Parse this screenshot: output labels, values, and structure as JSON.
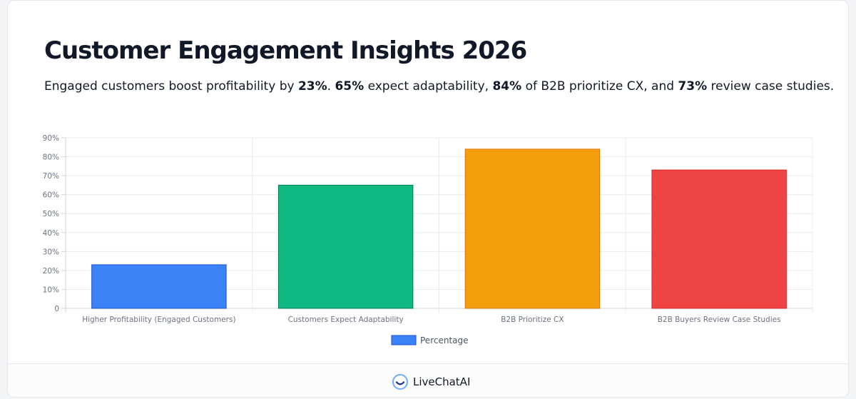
{
  "page": {
    "title": "Customer Engagement Insights 2026",
    "subtitle_parts": [
      {
        "text": "Engaged customers boost profitability by ",
        "bold": false
      },
      {
        "text": "23%",
        "bold": true
      },
      {
        "text": ". ",
        "bold": false
      },
      {
        "text": "65%",
        "bold": true
      },
      {
        "text": " expect adaptability, ",
        "bold": false
      },
      {
        "text": "84%",
        "bold": true
      },
      {
        "text": " of B2B prioritize CX, and ",
        "bold": false
      },
      {
        "text": "73%",
        "bold": true
      },
      {
        "text": " review case studies.",
        "bold": false
      }
    ]
  },
  "chart_data": {
    "type": "bar",
    "categories": [
      "Higher Profitability (Engaged Customers)",
      "Customers Expect Adaptability",
      "B2B Prioritize CX",
      "B2B Buyers Review Case Studies"
    ],
    "series": [
      {
        "name": "Percentage",
        "values": [
          23,
          65,
          84,
          73
        ],
        "colors": [
          "#3b82f6",
          "#10b981",
          "#f59e0b",
          "#ef4444"
        ],
        "border_colors": [
          "#1d4ed8",
          "#047857",
          "#d97706",
          "#dc2626"
        ]
      }
    ],
    "ylim": [
      0,
      90
    ],
    "yticks": [
      "0",
      "10%",
      "20%",
      "30%",
      "40%",
      "50%",
      "60%",
      "70%",
      "80%",
      "90%"
    ],
    "grid": true,
    "legend": "bottom-center",
    "legend_color": "#3b82f6",
    "legend_border": "#1d4ed8"
  },
  "footer": {
    "brand": "LiveChatAI",
    "logo_icon": "livechatai-logo-icon"
  }
}
